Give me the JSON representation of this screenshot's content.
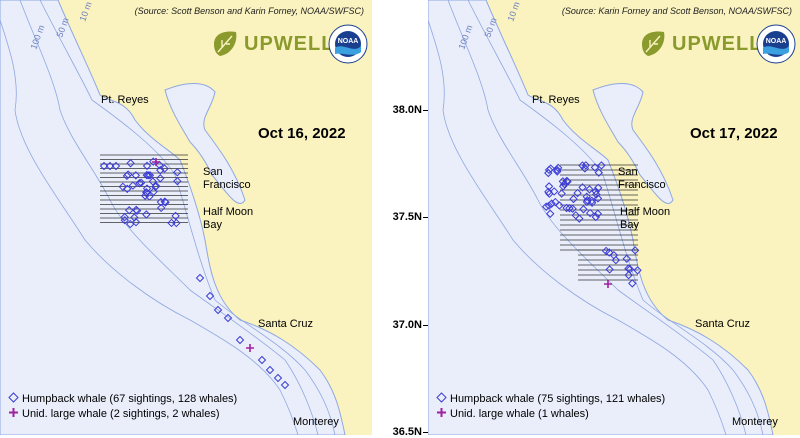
{
  "panels": [
    {
      "date": "Oct 16, 2022",
      "source": "(Source: Scott Benson and Karin Forney, NOAA/SWFSC)",
      "legend": {
        "humpback": "Humpback whale (67 sightings, 128 whales)",
        "unid": "Unid. large whale (2 sightings, 2 whales)"
      }
    },
    {
      "date": "Oct 17, 2022",
      "source": "(Source: Karin Forney and Scott Benson, NOAA/SWFSC)",
      "legend": {
        "humpback": "Humpback whale (75 sightings, 121 whales)",
        "unid": "Unid. large whale (1 whales)"
      }
    }
  ],
  "logo": {
    "upwell": "UPWELL",
    "noaa": "NOAA"
  },
  "places": {
    "pt_reyes": "Pt. Reyes",
    "sf_line1": "San",
    "sf_line2": "Francisco",
    "hmb_line1": "Half Moon",
    "hmb_line2": "Bay",
    "santa_cruz": "Santa Cruz",
    "monterey": "Monterey"
  },
  "depths": {
    "d10": "10 m",
    "d50": "50 m",
    "d100": "100 m"
  },
  "lat_labels": [
    "38.0N",
    "37.5N",
    "37.0N",
    "36.5N"
  ],
  "colors": {
    "land": "#faf3c0",
    "ocean": "#e9eefa",
    "contour": "#8fa7e0",
    "humpback": "#3b3bd6",
    "unid": "#a020a0",
    "track": "#333333"
  }
}
